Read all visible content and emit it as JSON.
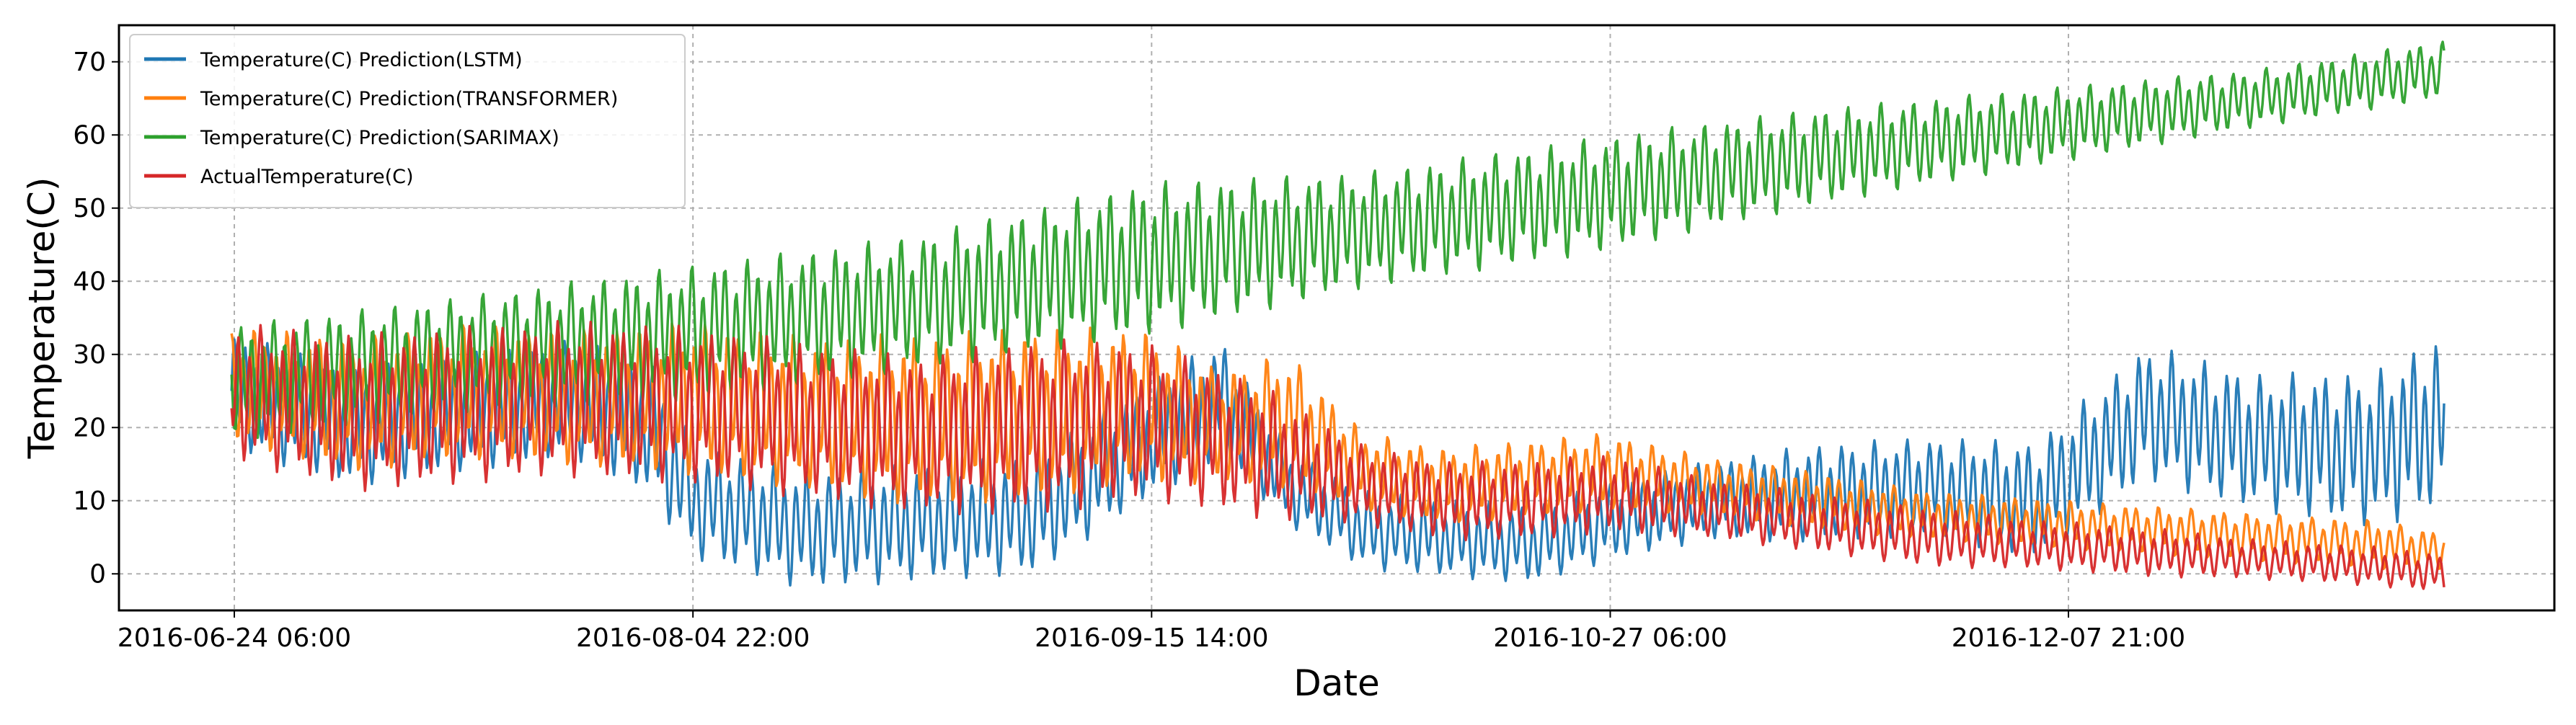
{
  "chart_data": {
    "type": "line",
    "title": "",
    "xlabel": "Date",
    "ylabel": "Temperature(C)",
    "x_tick_labels": [
      "2016-06-24 06:00",
      "2016-08-04 22:00",
      "2016-09-15 14:00",
      "2016-10-27 06:00",
      "2016-12-07 21:00"
    ],
    "x_range": [
      "2016-06-24 06:00",
      "2017-01-11 00:00"
    ],
    "ylim": [
      -5,
      75
    ],
    "y_ticks": [
      0,
      10,
      20,
      30,
      40,
      50,
      60,
      70
    ],
    "grid": true,
    "legend_position": "top-left",
    "series": [
      {
        "name": "Temperature(C) Prediction(LSTM)",
        "color": "#1f77b4",
        "x": [
          "2016-06-24",
          "2016-07-05",
          "2016-07-15",
          "2016-07-25",
          "2016-08-01",
          "2016-08-05",
          "2016-08-15",
          "2016-08-25",
          "2016-09-05",
          "2016-09-15",
          "2016-09-22",
          "2016-09-28",
          "2016-10-05",
          "2016-10-12",
          "2016-10-20",
          "2016-10-27",
          "2016-11-05",
          "2016-11-15",
          "2016-11-25",
          "2016-12-05",
          "2016-12-15",
          "2016-12-25",
          "2017-01-05",
          "2017-01-11"
        ],
        "values": [
          25,
          20,
          22,
          24,
          20,
          10,
          6,
          7,
          8,
          18,
          24,
          12,
          6,
          5,
          4,
          7,
          10,
          11,
          12,
          10,
          22,
          18,
          17,
          21
        ],
        "amplitude": [
          6,
          6,
          6,
          6,
          7,
          6,
          6,
          6,
          6,
          6,
          6,
          4,
          4,
          4,
          4,
          4,
          4,
          5,
          5,
          6,
          7,
          7,
          8,
          9
        ]
      },
      {
        "name": "Temperature(C) Prediction(TRANSFORMER)",
        "color": "#ff7f0e",
        "x": [
          "2016-06-24",
          "2016-07-05",
          "2016-07-15",
          "2016-07-25",
          "2016-08-05",
          "2016-08-15",
          "2016-08-25",
          "2016-09-05",
          "2016-09-15",
          "2016-09-22",
          "2016-09-28",
          "2016-10-05",
          "2016-10-12",
          "2016-10-20",
          "2016-10-27",
          "2016-11-05",
          "2016-11-15",
          "2016-11-25",
          "2016-12-05",
          "2016-12-15",
          "2016-12-25",
          "2017-01-05",
          "2017-01-11"
        ],
        "values": [
          26,
          23,
          25,
          24,
          24,
          22,
          21,
          22,
          23,
          20,
          21,
          14,
          12,
          13,
          14,
          12,
          10,
          8,
          7,
          6,
          5,
          4,
          3
        ],
        "amplitude": [
          6,
          7,
          7,
          7,
          8,
          8,
          9,
          9,
          8,
          6,
          7,
          4,
          4,
          4,
          4,
          3,
          3,
          2.5,
          2.5,
          2.5,
          2.5,
          2.5,
          2
        ]
      },
      {
        "name": "Temperature(C) Prediction(SARIMAX)",
        "color": "#2ca02c",
        "x": [
          "2016-06-24",
          "2016-07-15",
          "2016-08-05",
          "2016-08-25",
          "2016-09-15",
          "2016-10-05",
          "2016-10-27",
          "2016-11-15",
          "2016-12-05",
          "2016-12-25",
          "2017-01-11"
        ],
        "values": [
          26,
          30,
          33,
          37,
          43,
          47,
          52,
          57,
          61,
          65,
          69
        ],
        "amplitude": [
          6,
          6,
          7,
          7,
          8,
          6,
          6,
          5,
          4,
          3,
          3
        ]
      },
      {
        "name": "ActualTemperature(C)",
        "color": "#d62728",
        "x": [
          "2016-06-24",
          "2016-07-05",
          "2016-07-15",
          "2016-07-25",
          "2016-08-05",
          "2016-08-15",
          "2016-08-25",
          "2016-09-05",
          "2016-09-15",
          "2016-09-25",
          "2016-10-05",
          "2016-10-12",
          "2016-10-20",
          "2016-10-27",
          "2016-11-05",
          "2016-11-15",
          "2016-11-25",
          "2016-12-05",
          "2016-12-15",
          "2016-12-25",
          "2017-01-05",
          "2017-01-11"
        ],
        "values": [
          25,
          22,
          23,
          24,
          23,
          21,
          19,
          20,
          21,
          17,
          12,
          10,
          10,
          11,
          9,
          7,
          5,
          4,
          3,
          2,
          1,
          0
        ],
        "amplitude": [
          7,
          8,
          8,
          8,
          8,
          8,
          8,
          9,
          8,
          7,
          4,
          4,
          4,
          4,
          3,
          3,
          3,
          2.5,
          2.5,
          2,
          2,
          2
        ]
      }
    ]
  }
}
